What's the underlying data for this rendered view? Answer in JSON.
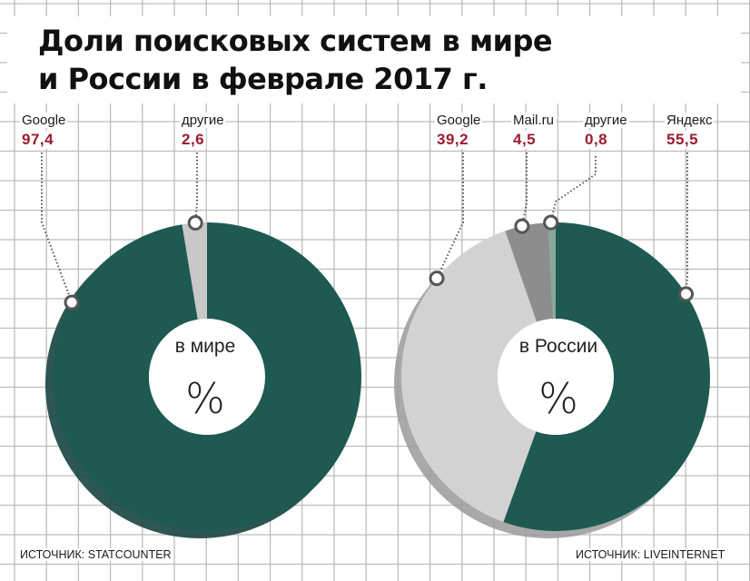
{
  "title": {
    "line1": "Доли поисковых систем в мире",
    "line2": "и России в феврале 2017 г."
  },
  "colors": {
    "google": "#1e5952",
    "others_world": "#c8c8c8",
    "google_russia": "#d2d2d2",
    "mailru": "#8d8d8d",
    "others_russia": "#8aa7a0",
    "yandex": "#1e5952",
    "value_text": "#9b1b30",
    "grid": "#bdbdbd"
  },
  "chart_data": [
    {
      "type": "pie",
      "center_label": "в мире",
      "unit": "%",
      "source": "ИСТОЧНИК: STATCOUNTER",
      "slices": [
        {
          "name": "Google",
          "value": 97.4,
          "display": "97,4"
        },
        {
          "name": "другие",
          "value": 2.6,
          "display": "2,6"
        }
      ]
    },
    {
      "type": "pie",
      "center_label": "в России",
      "unit": "%",
      "source": "ИСТОЧНИК: LIVEINTERNET",
      "slices": [
        {
          "name": "Google",
          "value": 39.2,
          "display": "39,2"
        },
        {
          "name": "Mail.ru",
          "value": 4.5,
          "display": "4,5"
        },
        {
          "name": "другие",
          "value": 0.8,
          "display": "0,8"
        },
        {
          "name": "Яндекс",
          "value": 55.5,
          "display": "55,5"
        }
      ]
    }
  ]
}
